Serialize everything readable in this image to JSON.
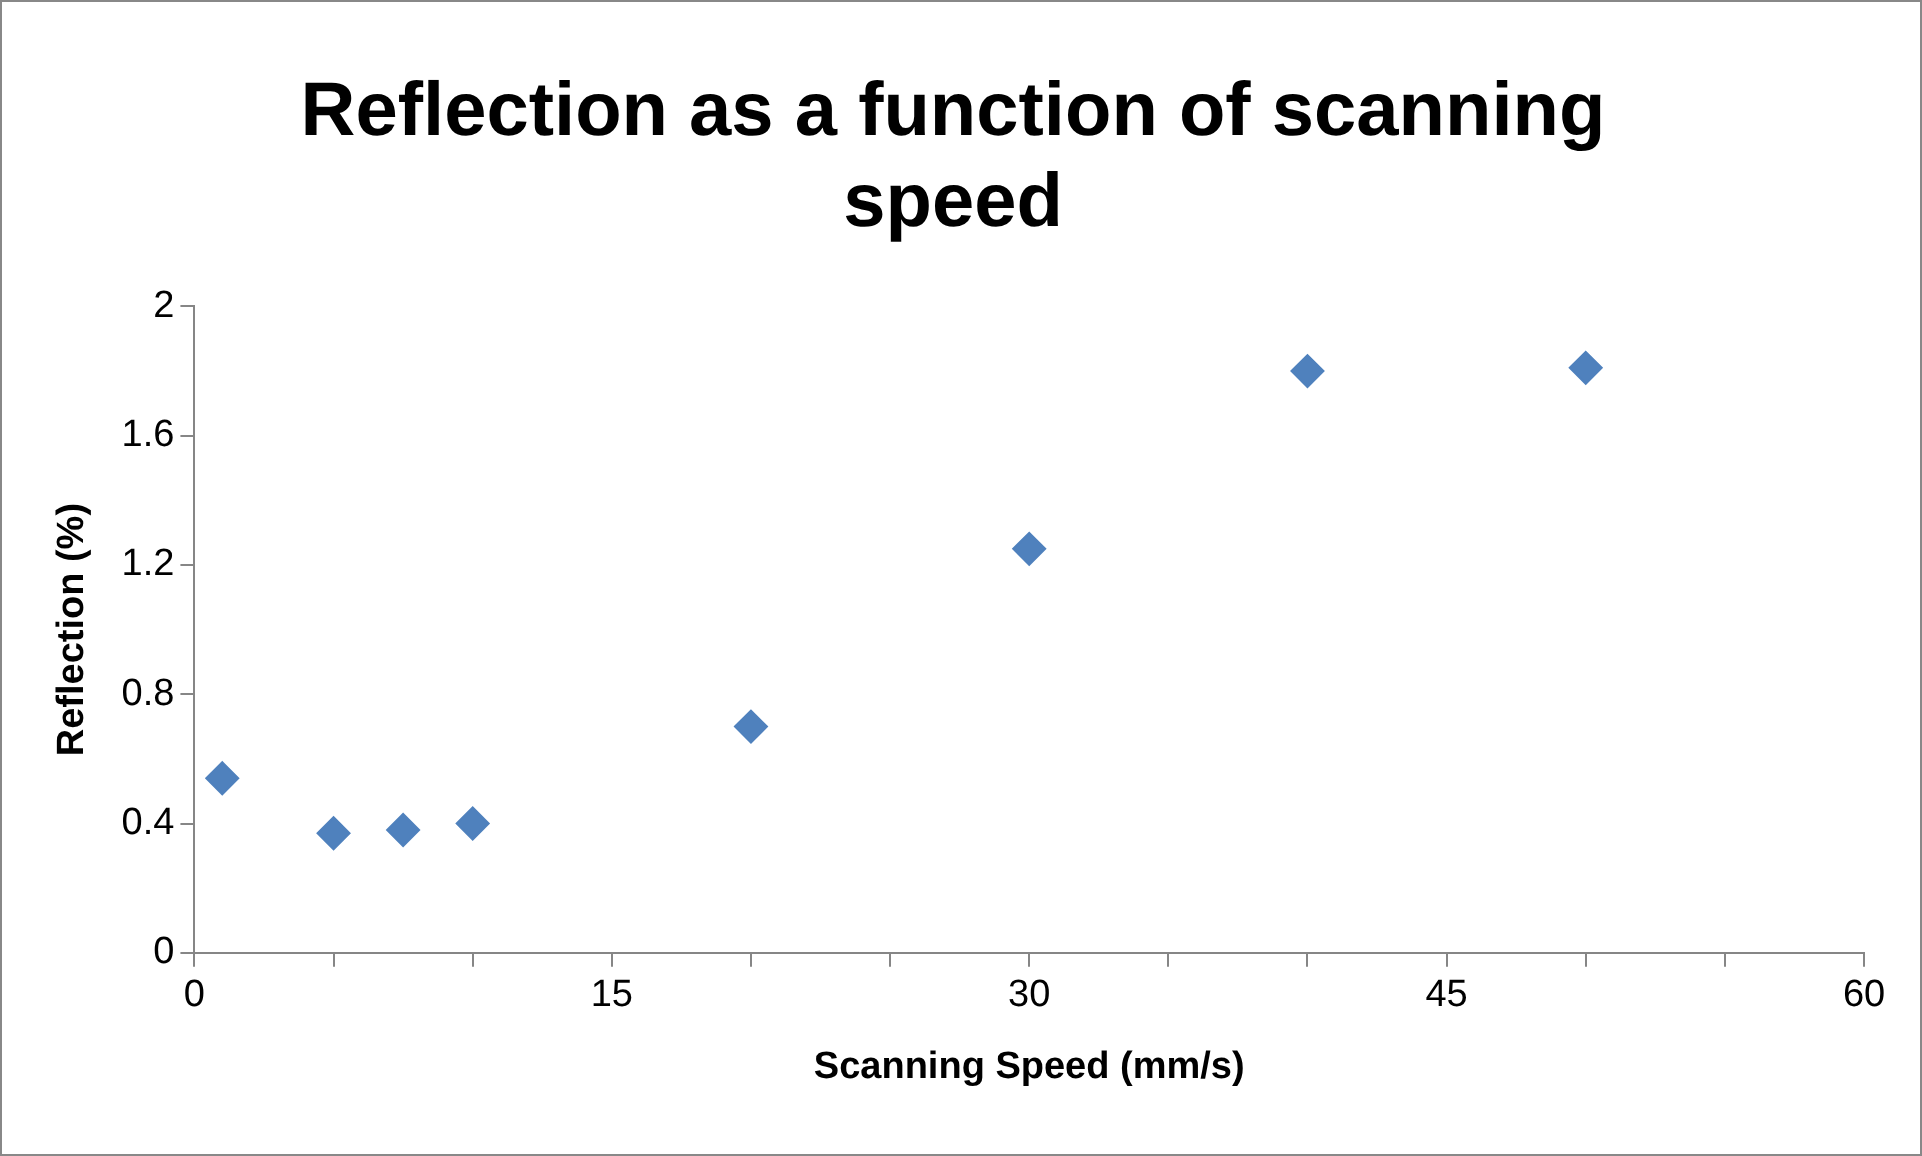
{
  "chart_data": {
    "type": "scatter",
    "title": "Reflection as a function of scanning speed",
    "xlabel": "Scanning Speed (mm/s)",
    "ylabel": "Reflection (%)",
    "x": [
      1,
      5,
      7.5,
      10,
      20,
      30,
      40,
      50
    ],
    "series": [
      {
        "color": "#4f81bd",
        "values": [
          0.54,
          0.37,
          0.38,
          0.4,
          0.7,
          1.25,
          1.8,
          1.81
        ]
      }
    ],
    "xlim": [
      0,
      60
    ],
    "xticks": [
      0,
      {
        "value": 5,
        "label": null
      },
      {
        "value": 10,
        "label": null
      },
      15,
      {
        "value": 20,
        "label": null
      },
      {
        "value": 25,
        "label": null
      },
      30,
      {
        "value": 35,
        "label": null
      },
      {
        "value": 40,
        "label": null
      },
      45,
      {
        "value": 50,
        "label": null
      },
      {
        "value": 55,
        "label": null
      },
      60
    ],
    "ylim": [
      0,
      2
    ],
    "yticks": [
      0,
      0.4,
      0.8,
      1.2,
      1.6,
      2
    ],
    "grid": false,
    "legend": false,
    "marker": "diamond"
  }
}
